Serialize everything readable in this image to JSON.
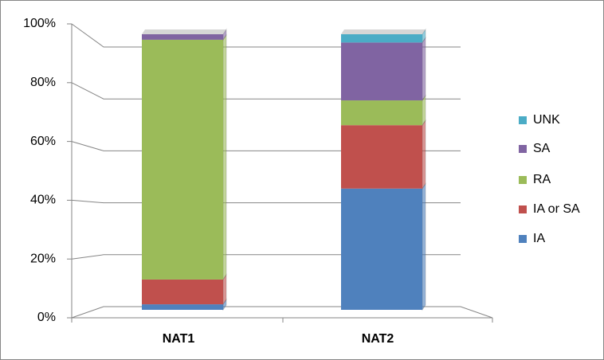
{
  "chart_data": {
    "type": "stacked-bar-3d",
    "categories": [
      "NAT1",
      "NAT2"
    ],
    "series": [
      {
        "name": "IA",
        "color": "#4f81bd",
        "values": [
          2,
          44
        ]
      },
      {
        "name": "IA or SA",
        "color": "#c0504d",
        "values": [
          9,
          23
        ]
      },
      {
        "name": "RA",
        "color": "#9bbb59",
        "values": [
          87,
          9
        ]
      },
      {
        "name": "SA",
        "color": "#8064a2",
        "values": [
          2,
          21
        ]
      },
      {
        "name": "UNK",
        "color": "#4bacc6",
        "values": [
          0,
          3
        ]
      }
    ],
    "ylim": [
      0,
      100
    ],
    "yticks": [
      {
        "value": 0,
        "label": "0%"
      },
      {
        "value": 20,
        "label": "20%"
      },
      {
        "value": 40,
        "label": "40%"
      },
      {
        "value": 60,
        "label": "60%"
      },
      {
        "value": 80,
        "label": "80%"
      },
      {
        "value": 100,
        "label": "100%"
      }
    ],
    "grid": true,
    "legend": "right"
  }
}
